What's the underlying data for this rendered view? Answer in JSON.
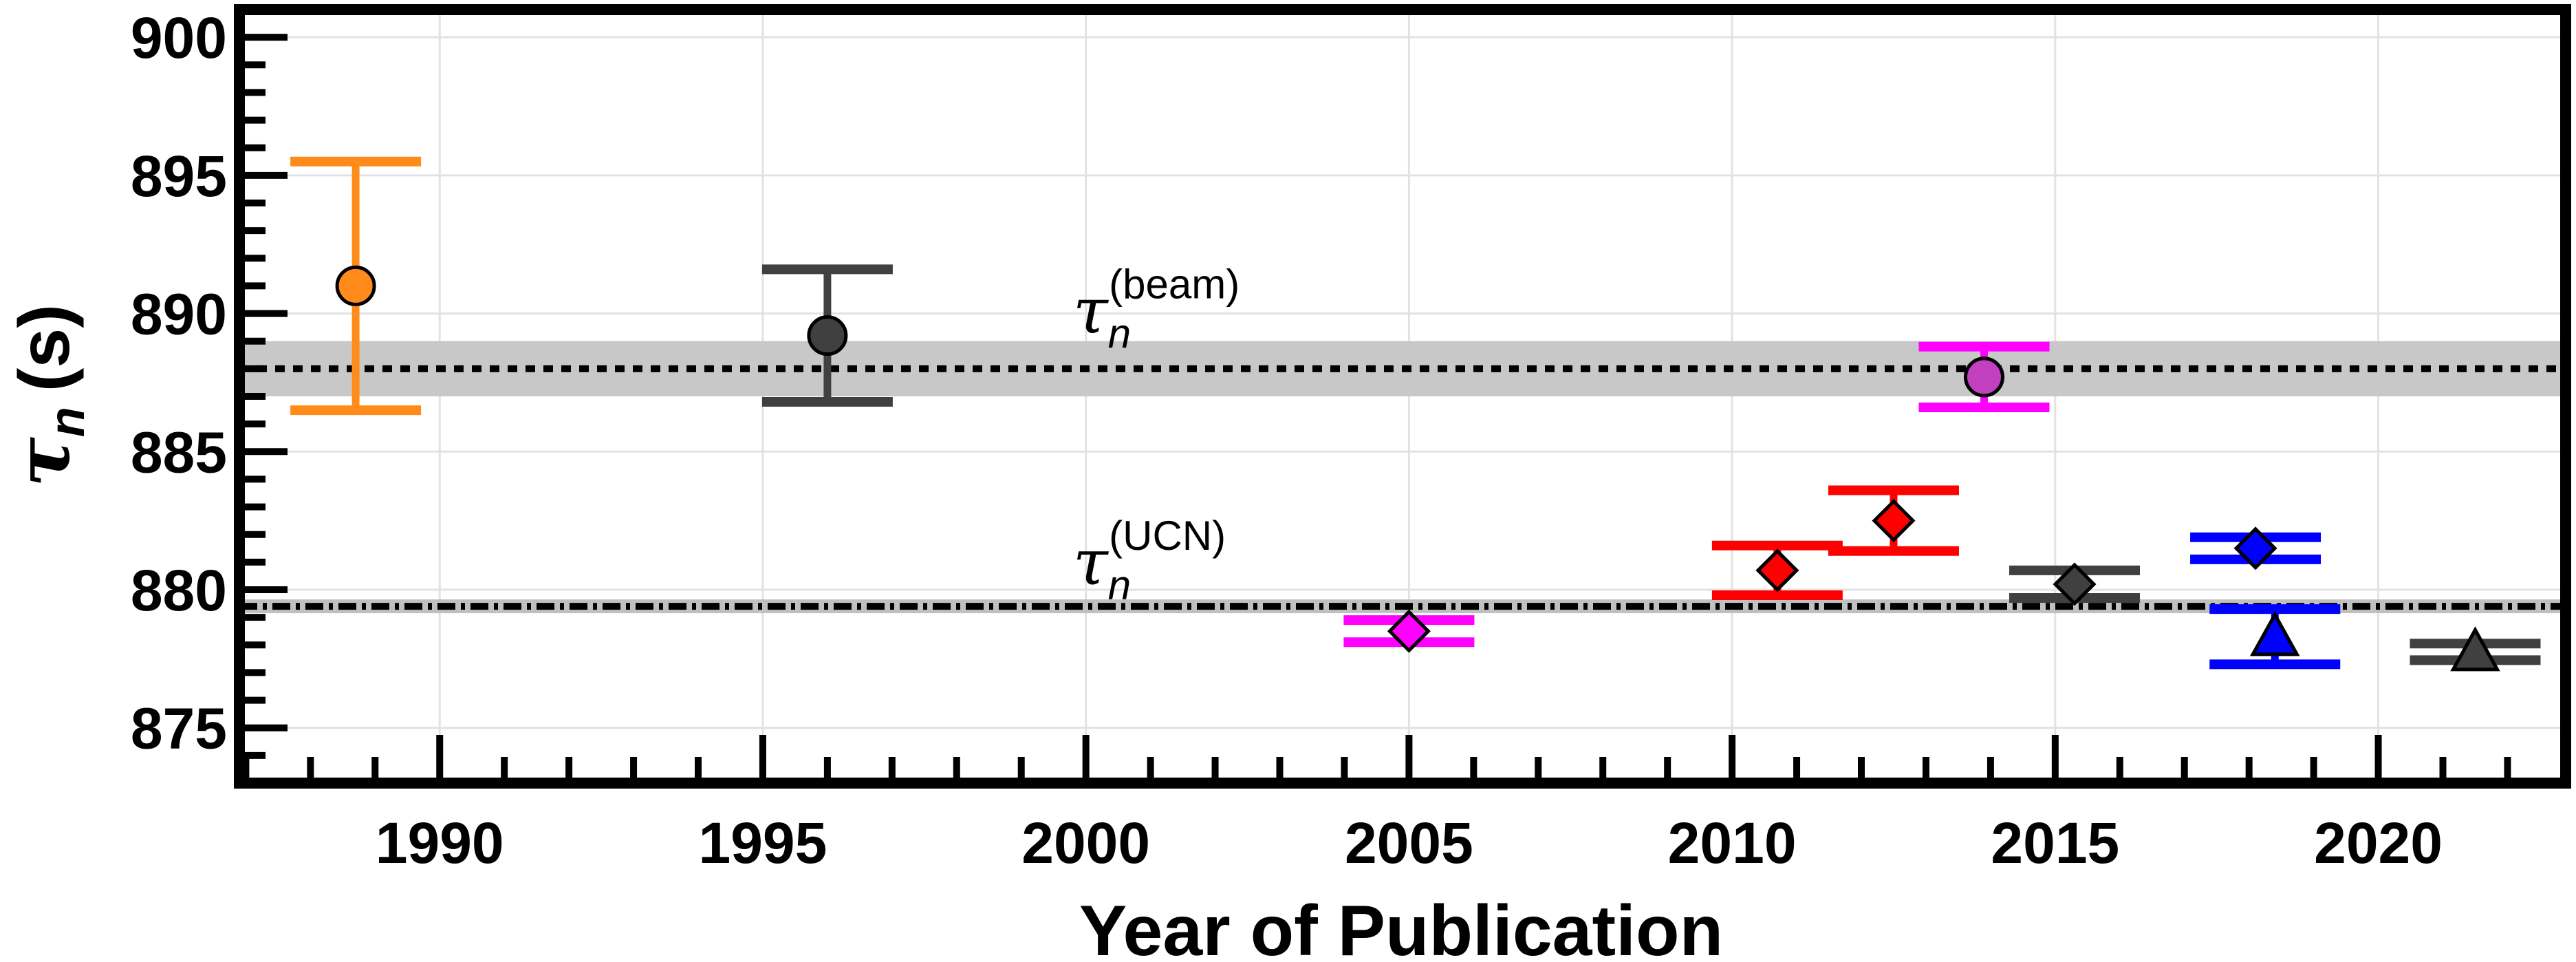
{
  "chart_data": {
    "type": "scatter",
    "xlabel": "Year of Publication",
    "ylabel": {
      "symbol": "τ",
      "sub": "n",
      "units": "(s)"
    },
    "xlim": [
      1986.9,
      2022.9
    ],
    "ylim": [
      873.0,
      901.0
    ],
    "x_ticks": [
      1990,
      1995,
      2000,
      2005,
      2010,
      2015,
      2020
    ],
    "y_ticks": [
      875,
      880,
      885,
      890,
      895,
      900
    ],
    "x_tick_labels": [
      "1990",
      "1995",
      "2000",
      "2005",
      "2010",
      "2015",
      "2020"
    ],
    "y_tick_labels": [
      "875",
      "880",
      "885",
      "890",
      "895",
      "900"
    ],
    "grid": true,
    "bands": [
      {
        "name": "beam",
        "label": "τ",
        "sub": "n",
        "sup": "(beam)",
        "value": 888.0,
        "err": 1.0,
        "label_x": 1999.8,
        "label_y": 889.3,
        "style": "dotted",
        "color": "#000000",
        "fill": "#c8c8c8"
      },
      {
        "name": "UCN",
        "label": "τ",
        "sub": "n",
        "sup": "(UCN)",
        "value": 879.4,
        "err": 0.25,
        "label_x": 1999.8,
        "label_y": 880.2,
        "style": "dashdot",
        "color": "#000000",
        "fill": "#c0c0c0"
      }
    ],
    "points": [
      {
        "x": 1988.7,
        "y": 891.0,
        "yerr_low": 4.5,
        "yerr_high": 4.5,
        "marker": "circle",
        "color": "#ff8c1a"
      },
      {
        "x": 1996.0,
        "y": 889.2,
        "yerr_low": 2.4,
        "yerr_high": 2.4,
        "marker": "circle",
        "color": "#404040"
      },
      {
        "x": 2005.0,
        "y": 878.5,
        "yerr_low": 0.4,
        "yerr_high": 0.4,
        "marker": "diamond",
        "color": "#ff00ff"
      },
      {
        "x": 2010.7,
        "y": 880.7,
        "yerr_low": 0.9,
        "yerr_high": 0.9,
        "marker": "diamond",
        "color": "#ff0000"
      },
      {
        "x": 2012.5,
        "y": 882.5,
        "yerr_low": 1.1,
        "yerr_high": 1.1,
        "marker": "diamond",
        "color": "#ff0000"
      },
      {
        "x": 2013.9,
        "y": 887.7,
        "yerr_low": 1.1,
        "yerr_high": 1.1,
        "marker": "circle",
        "color": "#c040c0",
        "bar_color": "#ff00ff"
      },
      {
        "x": 2015.3,
        "y": 880.2,
        "yerr_low": 0.5,
        "yerr_high": 0.5,
        "marker": "diamond",
        "color": "#404040"
      },
      {
        "x": 2018.1,
        "y": 881.5,
        "yerr_low": 0.4,
        "yerr_high": 0.4,
        "marker": "diamond",
        "color": "#0000ff"
      },
      {
        "x": 2018.4,
        "y": 878.3,
        "yerr_low": 1.0,
        "yerr_high": 1.0,
        "marker": "triangle",
        "color": "#0000ff"
      },
      {
        "x": 2021.5,
        "y": 877.75,
        "yerr_low": 0.3,
        "yerr_high": 0.3,
        "marker": "triangle",
        "color": "#404040"
      }
    ]
  }
}
